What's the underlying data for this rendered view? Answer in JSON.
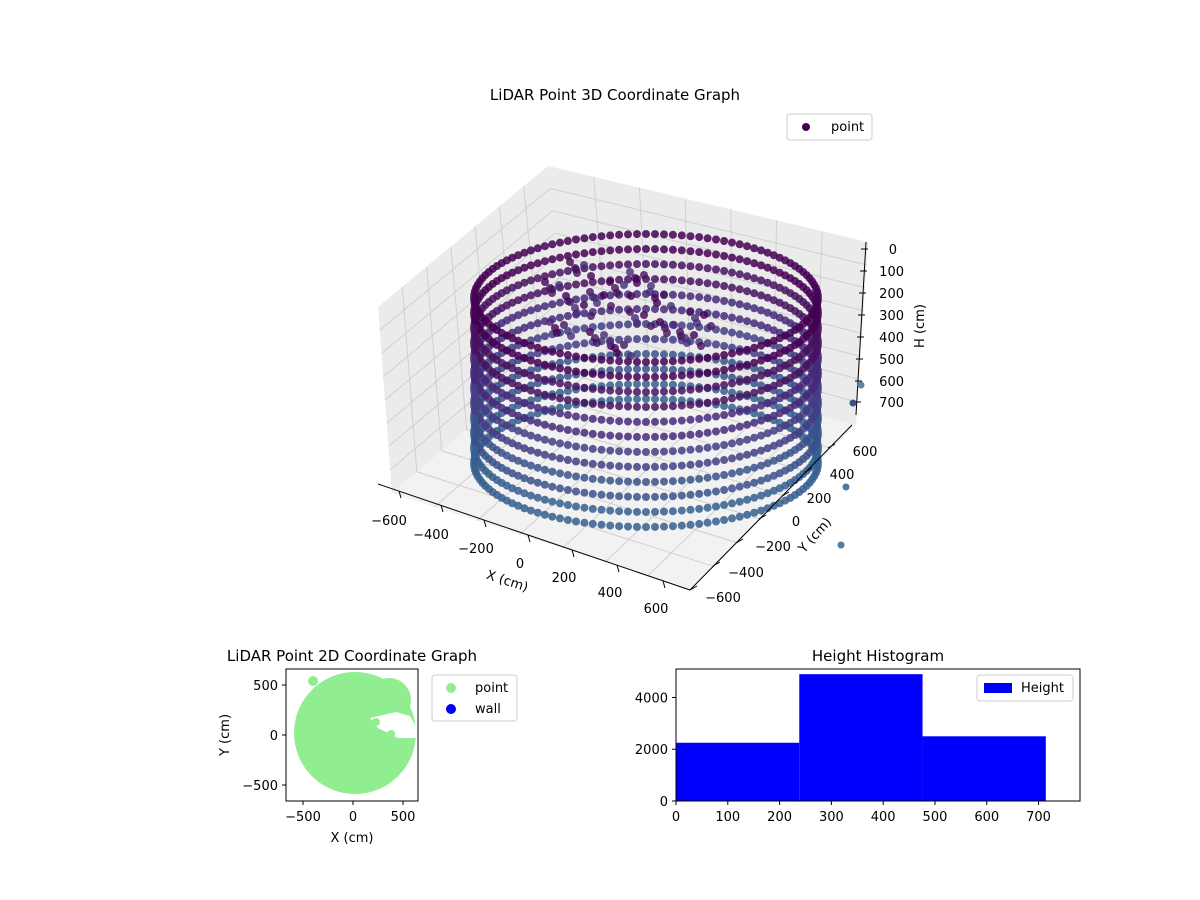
{
  "chart_data": [
    {
      "type": "scatter",
      "projection": "3d",
      "title": "LiDAR Point 3D Coordinate Graph",
      "xlabel": "X (cm)",
      "ylabel": "Y (cm)",
      "zlabel": "H (cm)",
      "xlim": [
        -700,
        700
      ],
      "ylim": [
        -700,
        700
      ],
      "zlim": [
        750,
        0
      ],
      "xticks": [
        "−600",
        "−400",
        "−200",
        "0",
        "200",
        "400",
        "600"
      ],
      "yticks": [
        "−600",
        "−400",
        "−200",
        "0",
        "200",
        "400",
        "600"
      ],
      "zticks": [
        "0",
        "100",
        "200",
        "300",
        "400",
        "500",
        "600",
        "700"
      ],
      "z_axis_inverted": true,
      "colormap": "viridis",
      "legend": {
        "placement": "top-right",
        "entries": [
          {
            "label": "point",
            "color": "#440154"
          }
        ]
      },
      "series": [
        {
          "name": "point",
          "description_shape": "cylindrical wall of points",
          "radius": 600,
          "center": [
            0,
            0
          ],
          "h_range": [
            0,
            720
          ],
          "outliers": [
            {
              "x": 700,
              "y": 450,
              "h": 600
            },
            {
              "x": 720,
              "y": 500,
              "h": 700
            },
            {
              "x": 680,
              "y": 200,
              "h": 720
            },
            {
              "x": 650,
              "y": -150,
              "h": 720
            }
          ]
        }
      ],
      "grid": true
    },
    {
      "type": "scatter",
      "title": "LiDAR Point 2D Coordinate Graph",
      "xlabel": "X (cm)",
      "ylabel": "Y (cm)",
      "xlim": [
        -670,
        670
      ],
      "ylim": [
        -670,
        670
      ],
      "xticks": [
        "−500",
        "0",
        "500"
      ],
      "yticks": [
        "−500",
        "0",
        "500"
      ],
      "legend": {
        "placement": "outside-right",
        "entries": [
          {
            "label": "point",
            "color": "#90ee90"
          },
          {
            "label": "wall",
            "color": "#0000ff"
          }
        ]
      },
      "series": [
        {
          "name": "point",
          "color": "#90ee90",
          "shape": "filled disc",
          "center": [
            0,
            0
          ],
          "radius": 600
        },
        {
          "name": "wall",
          "color": "#0000ff",
          "points": []
        }
      ],
      "grid": false
    },
    {
      "type": "bar",
      "histogram": true,
      "title": "Height Histogram",
      "xlabel": "",
      "ylabel": "",
      "xlim": [
        0,
        780
      ],
      "ylim": [
        0,
        5100
      ],
      "xticks": [
        "0",
        "100",
        "200",
        "300",
        "400",
        "500",
        "600",
        "700"
      ],
      "yticks": [
        "0",
        "2000",
        "4000"
      ],
      "color": "#0000ff",
      "legend": {
        "placement": "top-right",
        "entries": [
          {
            "label": "Height",
            "color": "#0000ff"
          }
        ]
      },
      "bins": [
        {
          "from": 0,
          "to": 238,
          "count": 2250
        },
        {
          "from": 238,
          "to": 476,
          "count": 4900
        },
        {
          "from": 476,
          "to": 714,
          "count": 2500
        }
      ],
      "grid": false
    }
  ]
}
